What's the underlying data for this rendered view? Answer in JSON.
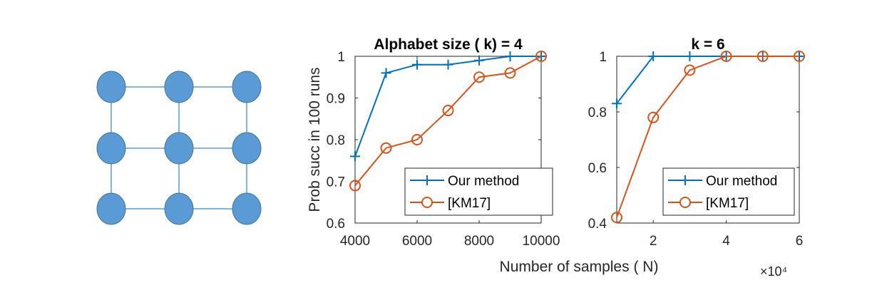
{
  "figure": {
    "shared_xlabel": "Number of samples ( N)",
    "exponent_label": "×10⁴"
  },
  "grid_graph": {
    "rows": 3,
    "cols": 3,
    "node_color": "#5B9BD5",
    "edge_color": "#5B9BD5"
  },
  "colors": {
    "ours": "#0072BD",
    "km17": "#D95319"
  },
  "chart_data": [
    {
      "type": "line",
      "title": "Alphabet size ( k) = 4",
      "xlabel": "Number of samples ( N)",
      "ylabel": "Prob succ in 100 runs",
      "xlim": [
        4000,
        10000
      ],
      "ylim": [
        0.6,
        1.0
      ],
      "xticks": [
        4000,
        6000,
        8000,
        10000
      ],
      "xtick_labels": [
        "4000",
        "6000",
        "8000",
        "10000"
      ],
      "yticks": [
        0.6,
        0.7,
        0.8,
        0.9,
        1.0
      ],
      "ytick_labels": [
        "0.6",
        "0.7",
        "0.8",
        "0.9",
        "1"
      ],
      "legend_position": "bottom-right",
      "grid": false,
      "series": [
        {
          "name": "Our method",
          "marker": "+",
          "color": "#0072BD",
          "x": [
            4000,
            5000,
            6000,
            7000,
            8000,
            9000,
            10000
          ],
          "y": [
            0.76,
            0.96,
            0.98,
            0.98,
            0.99,
            1.0,
            1.0
          ]
        },
        {
          "name": "[KM17]",
          "marker": "o",
          "color": "#D95319",
          "x": [
            4000,
            5000,
            6000,
            7000,
            8000,
            9000,
            10000
          ],
          "y": [
            0.69,
            0.78,
            0.8,
            0.87,
            0.95,
            0.96,
            1.0
          ]
        }
      ]
    },
    {
      "type": "line",
      "title": "k = 6",
      "xlabel": "Number of samples ( N)",
      "ylabel": "",
      "x_multiplier": "×10⁴",
      "xlim": [
        1,
        6
      ],
      "ylim": [
        0.4,
        1.0
      ],
      "xticks": [
        2,
        4,
        6
      ],
      "xtick_labels": [
        "2",
        "4",
        "6"
      ],
      "yticks": [
        0.4,
        0.6,
        0.8,
        1.0
      ],
      "ytick_labels": [
        "0.4",
        "0.6",
        "0.8",
        "1"
      ],
      "legend_position": "bottom-right",
      "grid": false,
      "series": [
        {
          "name": "Our method",
          "marker": "+",
          "color": "#0072BD",
          "x": [
            1,
            2,
            3,
            4,
            5,
            6
          ],
          "y": [
            0.83,
            1.0,
            1.0,
            1.0,
            1.0,
            1.0
          ]
        },
        {
          "name": "[KM17]",
          "marker": "o",
          "color": "#D95319",
          "x": [
            1,
            2,
            3,
            4,
            5,
            6
          ],
          "y": [
            0.42,
            0.78,
            0.95,
            1.0,
            1.0,
            1.0
          ]
        }
      ]
    }
  ]
}
